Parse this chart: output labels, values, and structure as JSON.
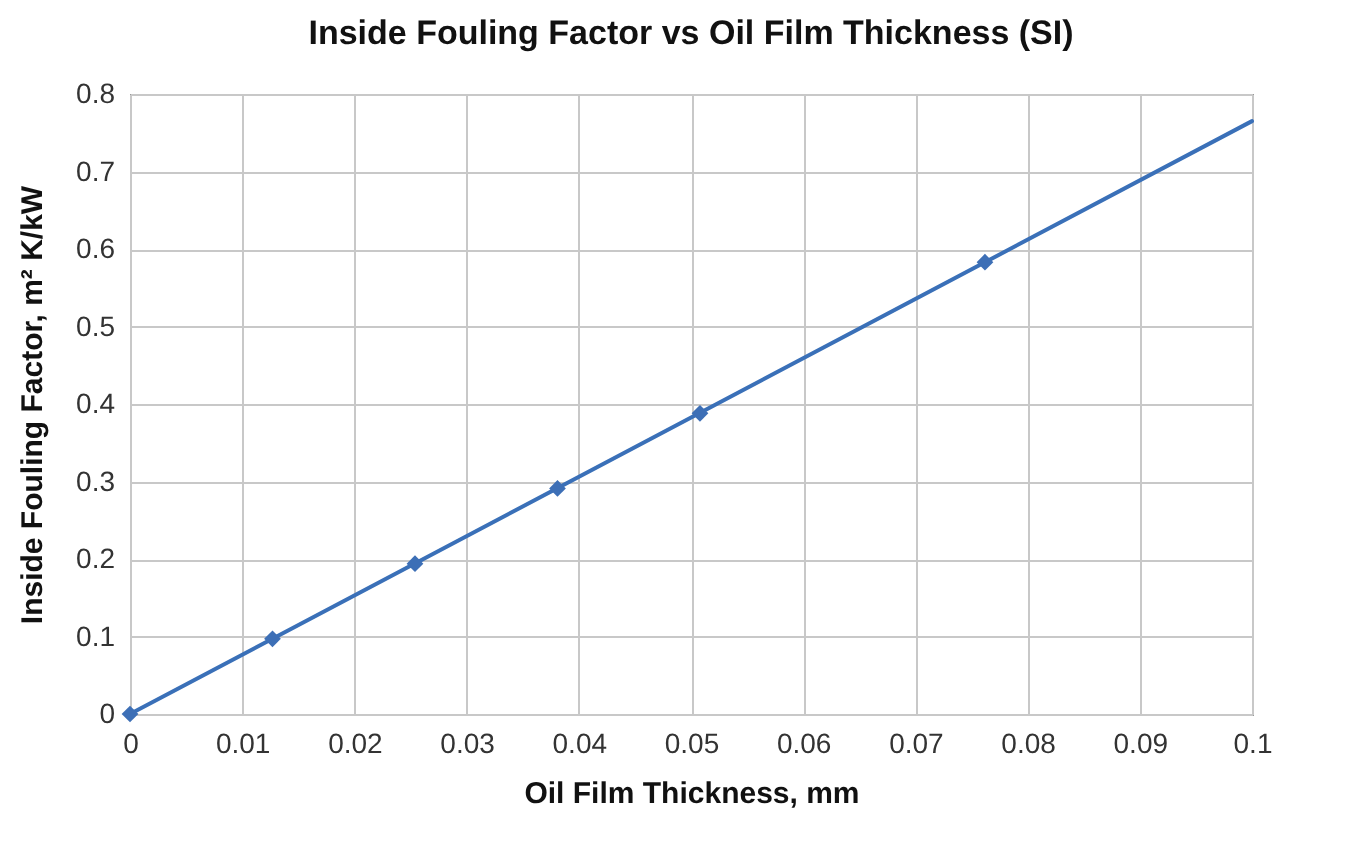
{
  "chart_data": {
    "type": "line",
    "title": "Inside Fouling Factor vs Oil Film Thickness (SI)",
    "xlabel": "Oil Film Thickness, mm",
    "ylabel": "Inside Fouling Factor, m² K/kW",
    "xlim": [
      0,
      0.1
    ],
    "xticks": [
      0,
      0.01,
      0.02,
      0.03,
      0.04,
      0.05,
      0.06,
      0.07,
      0.08,
      0.09,
      0.1
    ],
    "ylim": [
      0,
      0.8
    ],
    "yticks": [
      0,
      0.1,
      0.2,
      0.3,
      0.4,
      0.5,
      0.6,
      0.7,
      0.8
    ],
    "grid": true,
    "series": [
      {
        "color": "#3a70b8",
        "x": [
          0,
          0.1
        ],
        "values": [
          0,
          0.765
        ],
        "marker": "none"
      },
      {
        "type": "scatter",
        "color": "#3d6fb6",
        "x": [
          0,
          0.0127,
          0.0254,
          0.0381,
          0.0508,
          0.0762
        ],
        "values": [
          0,
          0.097,
          0.194,
          0.291,
          0.388,
          0.583
        ],
        "marker": "diamond"
      }
    ]
  }
}
